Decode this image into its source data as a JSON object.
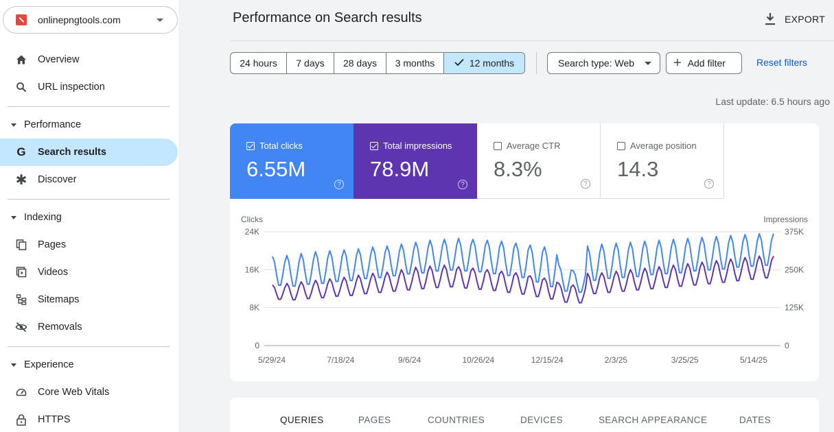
{
  "property": {
    "name": "onlinepngtools.com"
  },
  "sidebar": {
    "overview": "Overview",
    "url_inspection": "URL inspection",
    "performance_section": "Performance",
    "search_results": "Search results",
    "discover": "Discover",
    "indexing_section": "Indexing",
    "pages": "Pages",
    "videos": "Videos",
    "sitemaps": "Sitemaps",
    "removals": "Removals",
    "experience_section": "Experience",
    "core_web_vitals": "Core Web Vitals",
    "https": "HTTPS"
  },
  "header": {
    "title": "Performance on Search results",
    "export_label": "EXPORT"
  },
  "filters": {
    "ranges": [
      "24 hours",
      "7 days",
      "28 days",
      "3 months",
      "12 months"
    ],
    "selected_range": "12 months",
    "search_type": "Search type: Web",
    "add_filter": "Add filter",
    "reset_filters": "Reset filters",
    "last_update": "Last update: 6.5 hours ago"
  },
  "metrics": {
    "clicks": {
      "label": "Total clicks",
      "value": "6.55M",
      "checked": true,
      "color": "#4285f4"
    },
    "impressions": {
      "label": "Total impressions",
      "value": "78.9M",
      "checked": true,
      "color": "#5e35b1"
    },
    "ctr": {
      "label": "Average CTR",
      "value": "8.3%",
      "checked": false
    },
    "position": {
      "label": "Average position",
      "value": "14.3",
      "checked": false
    }
  },
  "chart_data": {
    "type": "line",
    "left_axis_label": "Clicks",
    "right_axis_label": "Impressions",
    "left_ticks": [
      "24K",
      "16K",
      "8K",
      "0"
    ],
    "right_ticks": [
      "375K",
      "250K",
      "125K",
      "0"
    ],
    "x_ticks": [
      "5/29/24",
      "7/18/24",
      "9/6/24",
      "10/26/24",
      "12/15/24",
      "2/3/25",
      "3/25/25",
      "5/14/25"
    ],
    "grid": true,
    "series": [
      {
        "name": "Clicks",
        "color": "#4285f4",
        "axis": "left",
        "weekly_high": [
          18800,
          19000,
          19400,
          19800,
          20000,
          20200,
          20400,
          20800,
          21000,
          21400,
          21800,
          22200,
          22400,
          22600,
          22400,
          22200,
          22000,
          21600,
          21200,
          20800,
          17000,
          15800,
          21000,
          21400,
          21600,
          21800,
          22000,
          22200,
          22400,
          22600,
          22800,
          23000,
          23200,
          23400,
          23600
        ],
        "weekly_low": [
          12400,
          12200,
          12600,
          12800,
          13200,
          13400,
          13800,
          14000,
          14400,
          14800,
          15000,
          15400,
          15600,
          15400,
          15200,
          14800,
          14400,
          14000,
          13000,
          12000,
          11200,
          11000,
          13400,
          13800,
          14000,
          14200,
          14600,
          14800,
          15000,
          15400,
          15600,
          15800,
          16200,
          16400,
          16600
        ]
      },
      {
        "name": "Impressions",
        "color": "#5e35b1",
        "axis": "right",
        "weekly_high": [
          200000,
          205000,
          210000,
          215000,
          220000,
          225000,
          232000,
          238000,
          242000,
          250000,
          258000,
          262000,
          265000,
          260000,
          255000,
          250000,
          245000,
          240000,
          230000,
          222000,
          205000,
          200000,
          238000,
          240000,
          245000,
          250000,
          255000,
          260000,
          265000,
          270000,
          275000,
          280000,
          285000,
          290000,
          295000
        ],
        "weekly_low": [
          150000,
          148000,
          152000,
          155000,
          160000,
          162000,
          168000,
          172000,
          176000,
          180000,
          184000,
          188000,
          190000,
          186000,
          182000,
          178000,
          172000,
          166000,
          158000,
          150000,
          140000,
          138000,
          168000,
          172000,
          176000,
          180000,
          184000,
          188000,
          192000,
          196000,
          200000,
          205000,
          210000,
          215000,
          220000
        ]
      }
    ],
    "left_range": [
      0,
      24000
    ],
    "right_range": [
      0,
      375000
    ]
  },
  "tabs": [
    "QUERIES",
    "PAGES",
    "COUNTRIES",
    "DEVICES",
    "SEARCH APPEARANCE",
    "DATES"
  ],
  "active_tab": "QUERIES"
}
